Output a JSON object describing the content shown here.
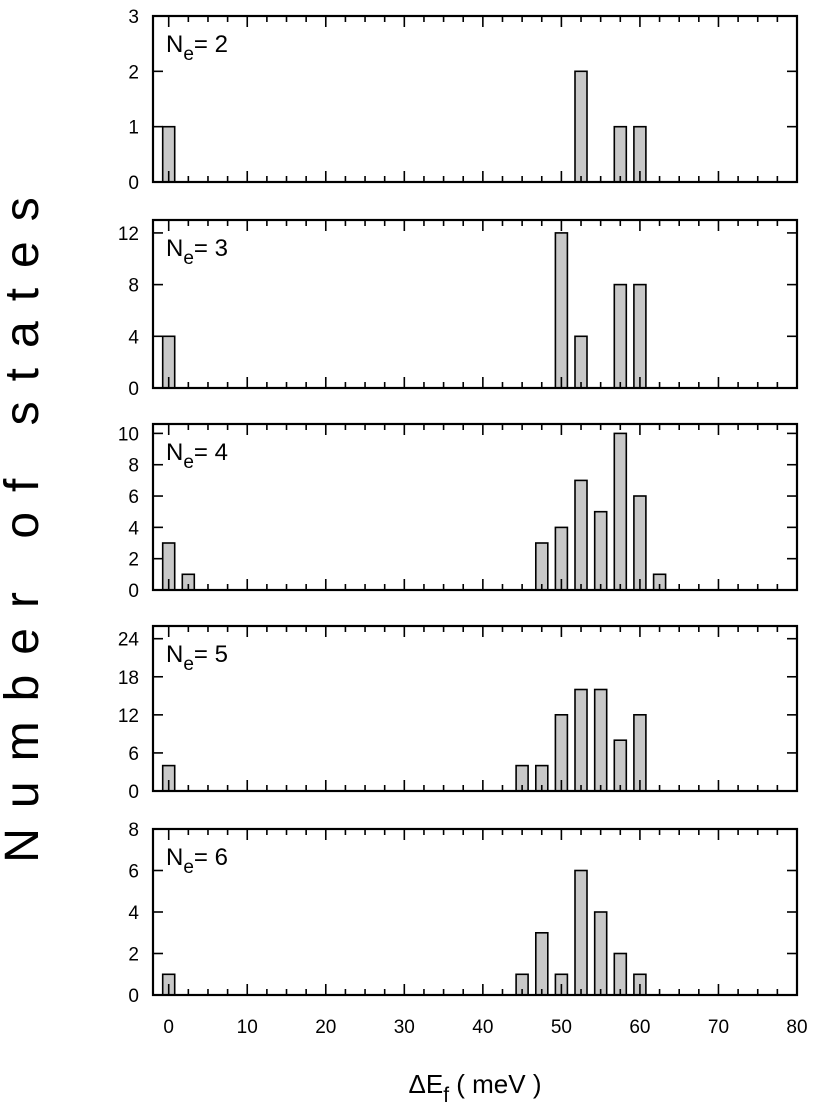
{
  "chart_data": {
    "type": "bar",
    "ylabel": "Number of states",
    "xlabel": {
      "base": "ΔE",
      "sub": "f",
      "rest": " ( meV )"
    },
    "xlim": [
      -2,
      80
    ],
    "xticks": [
      "0",
      "10",
      "20",
      "30",
      "40",
      "50",
      "60",
      "70",
      "80"
    ],
    "bar_color": "#c8c8c8",
    "panels": [
      {
        "label": {
          "base": "N",
          "sub": "e",
          "rest": "= 2"
        },
        "ylim": [
          0,
          3
        ],
        "yticks": [
          "0",
          "1",
          "2",
          "3"
        ],
        "bars": [
          {
            "x": 0,
            "y": 1
          },
          {
            "x": 52.5,
            "y": 2
          },
          {
            "x": 57.5,
            "y": 1
          },
          {
            "x": 60,
            "y": 1
          }
        ]
      },
      {
        "label": {
          "base": "N",
          "sub": "e",
          "rest": "= 3"
        },
        "ylim": [
          0,
          13
        ],
        "yticks": [
          "0",
          "4",
          "8",
          "12"
        ],
        "bars": [
          {
            "x": 0,
            "y": 4
          },
          {
            "x": 50,
            "y": 12
          },
          {
            "x": 52.5,
            "y": 4
          },
          {
            "x": 57.5,
            "y": 8
          },
          {
            "x": 60,
            "y": 8
          }
        ]
      },
      {
        "label": {
          "base": "N",
          "sub": "e",
          "rest": "= 4"
        },
        "ylim": [
          0,
          10.6
        ],
        "yticks": [
          "0",
          "2",
          "4",
          "6",
          "8",
          "10"
        ],
        "bars": [
          {
            "x": 0,
            "y": 3
          },
          {
            "x": 2.5,
            "y": 1
          },
          {
            "x": 47.5,
            "y": 3
          },
          {
            "x": 50,
            "y": 4
          },
          {
            "x": 52.5,
            "y": 7
          },
          {
            "x": 55,
            "y": 5
          },
          {
            "x": 57.5,
            "y": 10
          },
          {
            "x": 60,
            "y": 6
          },
          {
            "x": 62.5,
            "y": 1
          }
        ]
      },
      {
        "label": {
          "base": "N",
          "sub": "e",
          "rest": "= 5"
        },
        "ylim": [
          0,
          26
        ],
        "yticks": [
          "0",
          "6",
          "12",
          "18",
          "24"
        ],
        "bars": [
          {
            "x": 0,
            "y": 4
          },
          {
            "x": 45,
            "y": 4
          },
          {
            "x": 47.5,
            "y": 4
          },
          {
            "x": 50,
            "y": 12
          },
          {
            "x": 52.5,
            "y": 16
          },
          {
            "x": 55,
            "y": 16
          },
          {
            "x": 57.5,
            "y": 8
          },
          {
            "x": 60,
            "y": 12
          }
        ]
      },
      {
        "label": {
          "base": "N",
          "sub": "e",
          "rest": "= 6"
        },
        "ylim": [
          0,
          8
        ],
        "yticks": [
          "0",
          "2",
          "4",
          "6",
          "8"
        ],
        "bars": [
          {
            "x": 0,
            "y": 1
          },
          {
            "x": 45,
            "y": 1
          },
          {
            "x": 47.5,
            "y": 3
          },
          {
            "x": 50,
            "y": 1
          },
          {
            "x": 52.5,
            "y": 6
          },
          {
            "x": 55,
            "y": 4
          },
          {
            "x": 57.5,
            "y": 2
          },
          {
            "x": 60,
            "y": 1
          }
        ]
      }
    ]
  }
}
